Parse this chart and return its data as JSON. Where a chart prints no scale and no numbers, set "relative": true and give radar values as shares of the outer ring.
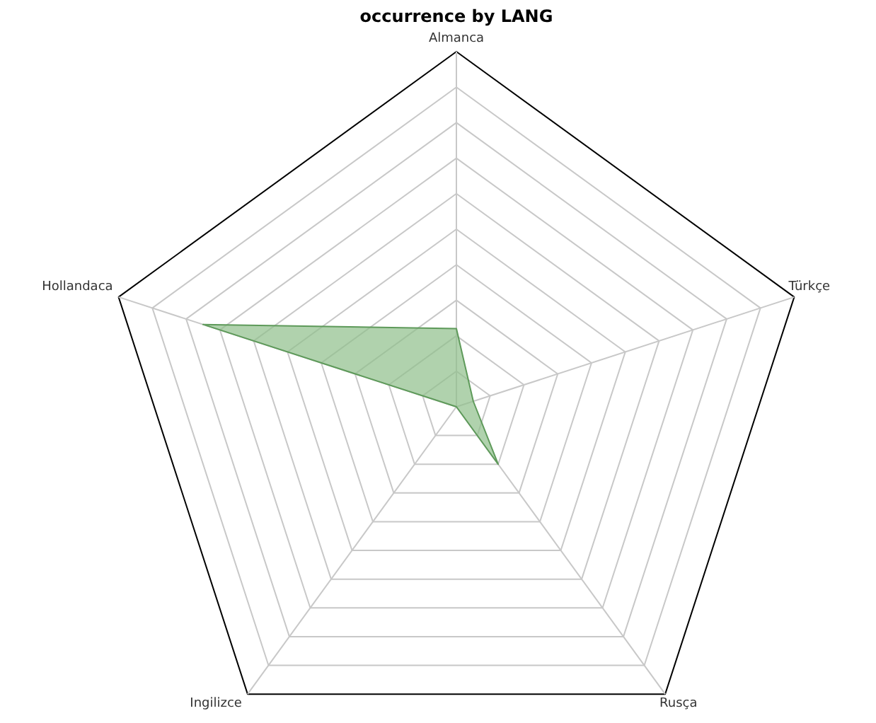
{
  "chart_data": {
    "type": "radar",
    "title": "occurrence by LANG",
    "categories": [
      "Almanca",
      "Türkçe",
      "Rusça",
      "Ingilizce",
      "Hollandaca"
    ],
    "relative": true,
    "grid": true,
    "series": [
      {
        "color": "#8fbf8a",
        "values": [
          0.22,
          0.05,
          0.2,
          0.0,
          0.75
        ]
      }
    ]
  }
}
